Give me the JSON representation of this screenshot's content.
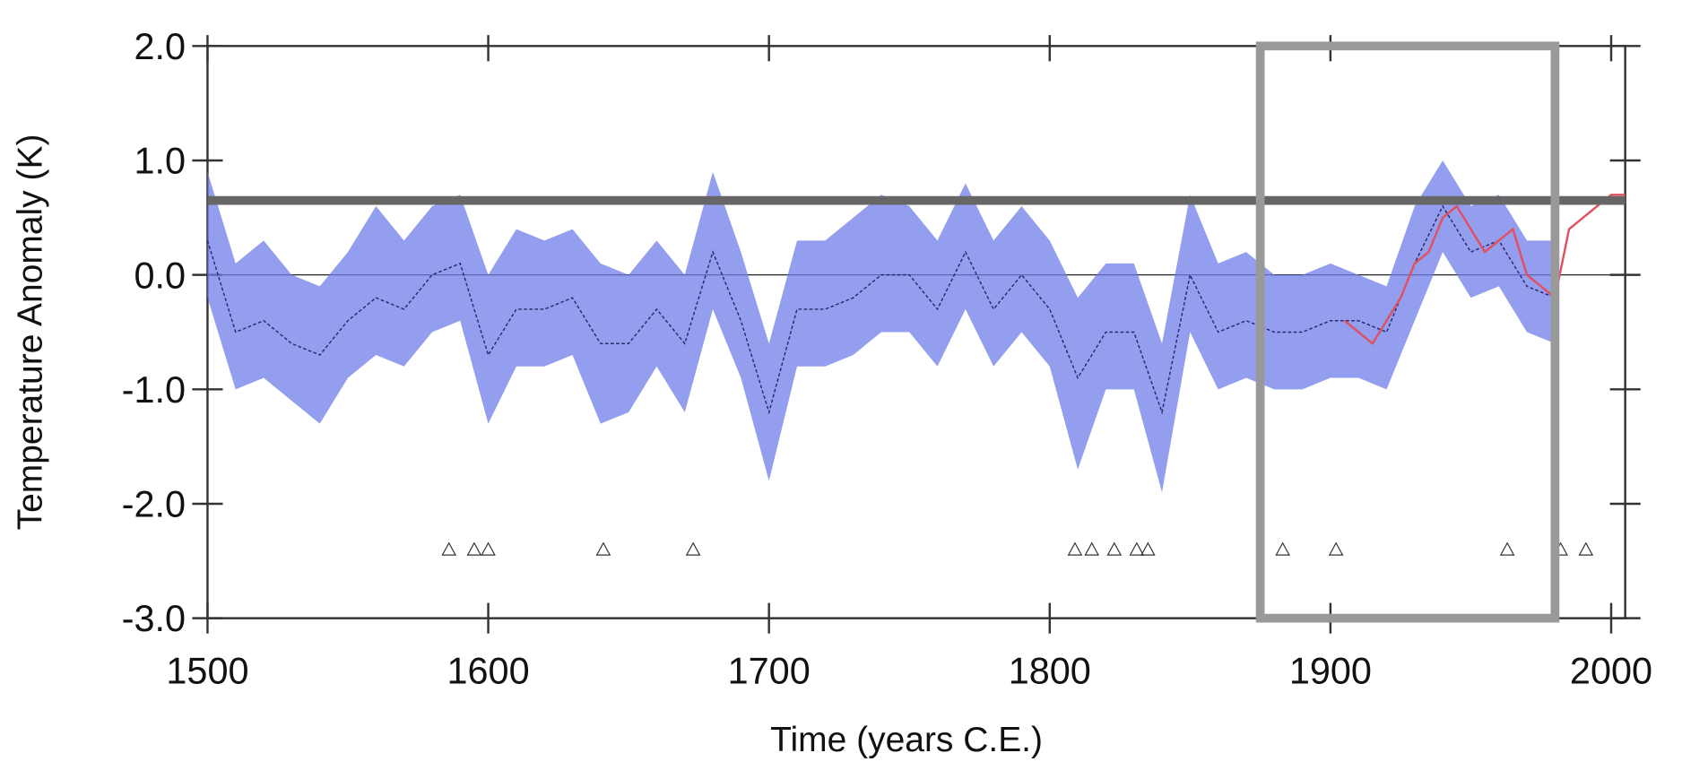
{
  "chart_data": {
    "type": "line",
    "xlabel": "Time (years C.E.)",
    "ylabel": "Temperature Anomaly (K)",
    "xlim": [
      1500,
      2005
    ],
    "ylim": [
      -3,
      2
    ],
    "xticks": [
      1500,
      1600,
      1700,
      1800,
      1900,
      2000
    ],
    "yticks": [
      {
        "value": 2,
        "label": "2.0"
      },
      {
        "value": 1,
        "label": "1.0"
      },
      {
        "value": 0,
        "label": "0.0"
      },
      {
        "value": -1,
        "label": "-1.0"
      },
      {
        "value": -2,
        "label": "-2.0"
      },
      {
        "value": -3,
        "label": "-3.0"
      }
    ],
    "series": [
      {
        "color": "#6f7fe8",
        "x": [
          1500,
          1510,
          1520,
          1530,
          1540,
          1550,
          1560,
          1570,
          1580,
          1590,
          1600,
          1610,
          1620,
          1630,
          1640,
          1650,
          1660,
          1670,
          1680,
          1690,
          1700,
          1710,
          1720,
          1730,
          1740,
          1750,
          1760,
          1770,
          1780,
          1790,
          1800,
          1810,
          1820,
          1830,
          1840,
          1850,
          1860,
          1870,
          1880,
          1890,
          1900,
          1910,
          1920,
          1930,
          1940,
          1950,
          1960,
          1970,
          1980
        ],
        "values": [
          0.3,
          -0.5,
          -0.4,
          -0.6,
          -0.7,
          -0.4,
          -0.2,
          -0.3,
          0.0,
          0.1,
          -0.7,
          -0.3,
          -0.3,
          -0.2,
          -0.6,
          -0.6,
          -0.3,
          -0.6,
          0.2,
          -0.4,
          -1.2,
          -0.3,
          -0.3,
          -0.2,
          0.0,
          0.0,
          -0.3,
          0.2,
          -0.3,
          0.0,
          -0.3,
          -0.9,
          -0.5,
          -0.5,
          -1.2,
          0.0,
          -0.5,
          -0.4,
          -0.5,
          -0.5,
          -0.4,
          -0.4,
          -0.5,
          0.1,
          0.6,
          0.2,
          0.3,
          -0.1,
          -0.2
        ],
        "lower": [
          -0.2,
          -1.0,
          -0.9,
          -1.1,
          -1.3,
          -0.9,
          -0.7,
          -0.8,
          -0.5,
          -0.4,
          -1.3,
          -0.8,
          -0.8,
          -0.7,
          -1.3,
          -1.2,
          -0.8,
          -1.2,
          -0.3,
          -0.9,
          -1.8,
          -0.8,
          -0.8,
          -0.7,
          -0.5,
          -0.5,
          -0.8,
          -0.3,
          -0.8,
          -0.5,
          -0.8,
          -1.7,
          -1.0,
          -1.0,
          -1.9,
          -0.5,
          -1.0,
          -0.9,
          -1.0,
          -1.0,
          -0.9,
          -0.9,
          -1.0,
          -0.4,
          0.2,
          -0.2,
          -0.1,
          -0.5,
          -0.6
        ],
        "upper": [
          0.9,
          0.1,
          0.3,
          0.0,
          -0.1,
          0.2,
          0.6,
          0.3,
          0.6,
          0.7,
          0.0,
          0.4,
          0.3,
          0.4,
          0.1,
          0.0,
          0.3,
          0.0,
          0.9,
          0.2,
          -0.6,
          0.3,
          0.3,
          0.5,
          0.7,
          0.6,
          0.3,
          0.8,
          0.3,
          0.6,
          0.3,
          -0.2,
          0.1,
          0.1,
          -0.6,
          0.7,
          0.1,
          0.2,
          0.0,
          0.0,
          0.1,
          0.0,
          -0.1,
          0.6,
          1.0,
          0.6,
          0.7,
          0.3,
          0.3
        ]
      },
      {
        "color": "#e05060",
        "x": [
          1905,
          1910,
          1915,
          1920,
          1925,
          1930,
          1935,
          1940,
          1945,
          1950,
          1955,
          1960,
          1965,
          1970,
          1975,
          1980,
          1985,
          1990,
          1995,
          2000,
          2005
        ],
        "values": [
          -0.4,
          -0.5,
          -0.6,
          -0.4,
          -0.2,
          0.1,
          0.2,
          0.5,
          0.6,
          0.4,
          0.2,
          0.3,
          0.4,
          0.0,
          -0.1,
          -0.2,
          0.4,
          0.5,
          0.6,
          0.7,
          0.7
        ]
      }
    ],
    "markers": {
      "x": [
        1586,
        1595,
        1600,
        1641,
        1673,
        1809,
        1815,
        1823,
        1831,
        1835,
        1883,
        1902,
        1963,
        1982,
        1991
      ],
      "values": [
        -2.4,
        -2.4,
        -2.4,
        -2.4,
        -2.4,
        -2.4,
        -2.4,
        -2.4,
        -2.4,
        -2.4,
        -2.4,
        -2.4,
        -2.4,
        -2.4,
        -2.4
      ]
    },
    "reference_line": {
      "value": 0.65,
      "color": "#666666"
    },
    "highlight_box": {
      "xlim": [
        1875,
        1980
      ],
      "ylim": [
        -3,
        2
      ],
      "color": "#999999"
    }
  }
}
